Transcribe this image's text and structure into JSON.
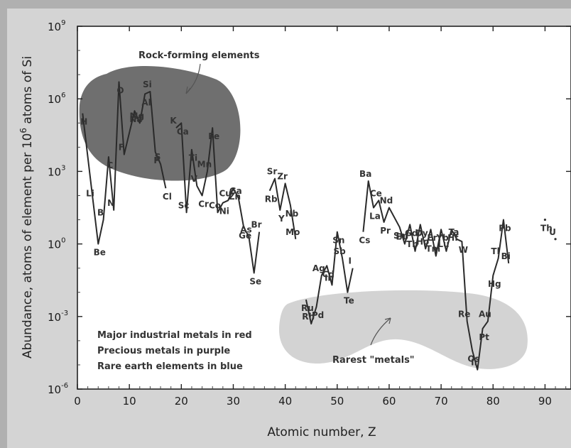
{
  "chart_data": {
    "type": "line",
    "xlabel": "Atomic number, Z",
    "ylabel": "Abundance, atoms of element per 10",
    "ylabel_sup": "6",
    "ylabel_tail": " atoms of Si",
    "xlim": [
      0,
      95
    ],
    "ylim_log10": [
      -6,
      9
    ],
    "x_ticks": [
      0,
      10,
      20,
      30,
      40,
      50,
      60,
      70,
      80,
      90
    ],
    "x_tick_labels": [
      "0",
      "10",
      "20",
      "30",
      "40",
      "50",
      "60",
      "70",
      "80",
      "90"
    ],
    "y_ticks_log10": [
      -6,
      -3,
      0,
      3,
      6,
      9
    ],
    "y_tick_base": "10",
    "y_tick_exps": [
      "-6",
      "-3",
      "0",
      "3",
      "6",
      "9"
    ],
    "series": [
      {
        "points": [
          [
            1,
            5.4
          ],
          [
            3,
            1.8
          ],
          [
            4,
            0.0
          ],
          [
            5,
            1.0
          ],
          [
            6,
            3.6
          ],
          [
            7,
            1.4
          ],
          [
            8,
            6.7
          ],
          [
            9,
            3.7
          ],
          [
            11,
            5.5
          ],
          [
            12,
            5.0
          ],
          [
            13,
            6.2
          ],
          [
            14,
            6.3
          ],
          [
            15,
            3.8
          ],
          [
            16,
            3.3
          ],
          [
            17,
            2.3
          ]
        ]
      },
      {
        "points": [
          [
            19,
            4.8
          ],
          [
            20,
            5.0
          ],
          [
            21,
            1.3
          ],
          [
            22,
            3.9
          ],
          [
            23,
            2.4
          ],
          [
            24,
            2.0
          ],
          [
            25,
            3.0
          ],
          [
            26,
            4.8
          ],
          [
            27,
            1.3
          ],
          [
            28,
            1.7
          ],
          [
            29,
            1.8
          ],
          [
            30,
            2.3
          ],
          [
            31,
            1.9
          ],
          [
            32,
            0.7
          ],
          [
            33,
            0.3
          ],
          [
            34,
            -1.2
          ],
          [
            35,
            0.5
          ]
        ]
      },
      {
        "points": [
          [
            37,
            2.2
          ],
          [
            38,
            2.7
          ],
          [
            39,
            1.4
          ],
          [
            40,
            2.5
          ],
          [
            41,
            1.6
          ],
          [
            42,
            0.2
          ]
        ]
      },
      {
        "points": [
          [
            44,
            -2.3
          ],
          [
            45,
            -3.3
          ],
          [
            46,
            -2.6
          ],
          [
            47,
            -1.3
          ],
          [
            48,
            -0.9
          ],
          [
            49,
            -1.7
          ],
          [
            50,
            0.5
          ],
          [
            51,
            -0.6
          ],
          [
            52,
            -2.0
          ],
          [
            53,
            -1.0
          ]
        ]
      },
      {
        "points": [
          [
            55,
            0.5
          ],
          [
            56,
            2.6
          ],
          [
            57,
            1.5
          ],
          [
            58,
            1.8
          ],
          [
            59,
            0.9
          ],
          [
            60,
            1.5
          ],
          [
            62,
            0.7
          ],
          [
            63,
            0.0
          ],
          [
            64,
            0.8
          ],
          [
            65,
            -0.3
          ],
          [
            66,
            0.8
          ],
          [
            67,
            -0.2
          ],
          [
            68,
            0.6
          ],
          [
            69,
            -0.5
          ],
          [
            70,
            0.6
          ],
          [
            71,
            -0.3
          ],
          [
            72,
            0.6
          ],
          [
            73,
            0.2
          ],
          [
            74,
            0.1
          ],
          [
            75,
            -3.2
          ],
          [
            76,
            -4.4
          ],
          [
            77,
            -5.2
          ],
          [
            78,
            -3.5
          ],
          [
            79,
            -3.2
          ],
          [
            80,
            -1.3
          ],
          [
            81,
            -0.6
          ],
          [
            82,
            1.0
          ],
          [
            83,
            -0.8
          ]
        ]
      },
      {
        "points": [
          [
            90,
            1.0
          ],
          [
            92,
            0.2
          ]
        ]
      }
    ],
    "element_labels": [
      {
        "z": 1,
        "v": 5.4,
        "text": "H",
        "c": "#777"
      },
      {
        "z": 3,
        "v": 1.8,
        "text": "Li",
        "c": "#333"
      },
      {
        "z": 4,
        "v": 0.0,
        "text": "Be",
        "c": "#333"
      },
      {
        "z": 5,
        "v": 1.0,
        "text": "B",
        "c": "#333"
      },
      {
        "z": 6,
        "v": 3.6,
        "text": "C",
        "c": "#777"
      },
      {
        "z": 7,
        "v": 1.4,
        "text": "N",
        "c": "#333"
      },
      {
        "z": 8,
        "v": 6.7,
        "text": "O",
        "c": "#777"
      },
      {
        "z": 9,
        "v": 3.7,
        "text": "F",
        "c": "#777"
      },
      {
        "z": 11,
        "v": 5.5,
        "text": "Na",
        "c": "#777"
      },
      {
        "z": 12,
        "v": 5.0,
        "text": "Mg",
        "c": "#777"
      },
      {
        "z": 13,
        "v": 6.2,
        "text": "Al",
        "c": "#777"
      },
      {
        "z": 14,
        "v": 6.3,
        "text": "Si",
        "c": "#777"
      },
      {
        "z": 15,
        "v": 3.8,
        "text": "P",
        "c": "#777"
      },
      {
        "z": 16,
        "v": 3.3,
        "text": "S",
        "c": "#777"
      },
      {
        "z": 17,
        "v": 2.3,
        "text": "Cl",
        "c": "#777"
      },
      {
        "z": 19,
        "v": 4.8,
        "text": "K",
        "c": "#333"
      },
      {
        "z": 20,
        "v": 5.0,
        "text": "Ca",
        "c": "#777"
      },
      {
        "z": 21,
        "v": 1.3,
        "text": "Sc",
        "c": "#333"
      },
      {
        "z": 22,
        "v": 3.9,
        "text": "Ti",
        "c": "#777"
      },
      {
        "z": 23,
        "v": 2.4,
        "text": "V",
        "c": "#333"
      },
      {
        "z": 24,
        "v": 2.0,
        "text": "Cr",
        "c": "#333"
      },
      {
        "z": 25,
        "v": 3.0,
        "text": "Mn",
        "c": "#777"
      },
      {
        "z": 26,
        "v": 4.8,
        "text": "Fe",
        "c": "#777"
      },
      {
        "z": 27,
        "v": 1.3,
        "text": "Co",
        "c": "#333"
      },
      {
        "z": 28,
        "v": 1.7,
        "text": "Ni",
        "c": "#333"
      },
      {
        "z": 29,
        "v": 1.8,
        "text": "Cu",
        "c": "#333"
      },
      {
        "z": 30,
        "v": 2.3,
        "text": "Zn",
        "c": "#333"
      },
      {
        "z": 31,
        "v": 1.9,
        "text": "Ga",
        "c": "#333"
      },
      {
        "z": 32,
        "v": 0.7,
        "text": "Ge",
        "c": "#333"
      },
      {
        "z": 33,
        "v": 0.3,
        "text": "As",
        "c": "#333"
      },
      {
        "z": 34,
        "v": -1.2,
        "text": "Se",
        "c": "#333"
      },
      {
        "z": 35,
        "v": 0.5,
        "text": "Br",
        "c": "#333"
      },
      {
        "z": 37,
        "v": 2.2,
        "text": "Rb",
        "c": "#333"
      },
      {
        "z": 38,
        "v": 2.7,
        "text": "Sr",
        "c": "#333"
      },
      {
        "z": 39,
        "v": 1.4,
        "text": "Y",
        "c": "#333"
      },
      {
        "z": 40,
        "v": 2.5,
        "text": "Zr",
        "c": "#333"
      },
      {
        "z": 41,
        "v": 1.6,
        "text": "Nb",
        "c": "#333"
      },
      {
        "z": 42,
        "v": 0.2,
        "text": "Mo",
        "c": "#777"
      },
      {
        "z": 44,
        "v": -2.3,
        "text": "Ru",
        "c": "#333"
      },
      {
        "z": 45,
        "v": -3.3,
        "text": "Rh",
        "c": "#333"
      },
      {
        "z": 46,
        "v": -2.6,
        "text": "Pd",
        "c": "#333"
      },
      {
        "z": 47,
        "v": -1.3,
        "text": "Ag",
        "c": "#333"
      },
      {
        "z": 48,
        "v": -0.9,
        "text": "Cd",
        "c": "#333"
      },
      {
        "z": 49,
        "v": -1.7,
        "text": "In",
        "c": "#333"
      },
      {
        "z": 50,
        "v": 0.5,
        "text": "Sn",
        "c": "#777"
      },
      {
        "z": 51,
        "v": -0.6,
        "text": "Sb",
        "c": "#333"
      },
      {
        "z": 52,
        "v": -2.0,
        "text": "Te",
        "c": "#333"
      },
      {
        "z": 53,
        "v": -1.0,
        "text": "I",
        "c": "#333"
      },
      {
        "z": 55,
        "v": 0.5,
        "text": "Cs",
        "c": "#333"
      },
      {
        "z": 56,
        "v": 2.6,
        "text": "Ba",
        "c": "#333"
      },
      {
        "z": 57,
        "v": 1.5,
        "text": "La",
        "c": "#777"
      },
      {
        "z": 58,
        "v": 1.8,
        "text": "Ce",
        "c": "#333"
      },
      {
        "z": 59,
        "v": 0.9,
        "text": "Pr",
        "c": "#333"
      },
      {
        "z": 60,
        "v": 1.5,
        "text": "Nd",
        "c": "#333"
      },
      {
        "z": 62,
        "v": 0.7,
        "text": "Sm",
        "c": "#333"
      },
      {
        "z": 63,
        "v": 0.0,
        "text": "Eu",
        "c": "#333"
      },
      {
        "z": 64,
        "v": 0.8,
        "text": "Gd",
        "c": "#333"
      },
      {
        "z": 65,
        "v": -0.3,
        "text": "Tb",
        "c": "#777"
      },
      {
        "z": 66,
        "v": 0.8,
        "text": "Dy",
        "c": "#777"
      },
      {
        "z": 67,
        "v": -0.2,
        "text": "Ho",
        "c": "#777"
      },
      {
        "z": 68,
        "v": 0.6,
        "text": "Er",
        "c": "#333"
      },
      {
        "z": 69,
        "v": -0.5,
        "text": "Tm",
        "c": "#333"
      },
      {
        "z": 70,
        "v": 0.6,
        "text": "Yb",
        "c": "#333"
      },
      {
        "z": 71,
        "v": -0.3,
        "text": "Lu",
        "c": "#333"
      },
      {
        "z": 72,
        "v": 0.6,
        "text": "Hf",
        "c": "#333"
      },
      {
        "z": 73,
        "v": 0.2,
        "text": "Ta",
        "c": "#333"
      },
      {
        "z": 74,
        "v": 0.1,
        "text": "W",
        "c": "#777"
      },
      {
        "z": 75,
        "v": -3.2,
        "text": "Re",
        "c": "#333"
      },
      {
        "z": 76,
        "v": -4.4,
        "text": "Os",
        "c": "#777"
      },
      {
        "z": 77,
        "v": -5.2,
        "text": "Ir",
        "c": "#333"
      },
      {
        "z": 78,
        "v": -3.5,
        "text": "Pt",
        "c": "#333"
      },
      {
        "z": 79,
        "v": -3.2,
        "text": "Au",
        "c": "#333"
      },
      {
        "z": 80,
        "v": -1.3,
        "text": "Hg",
        "c": "#333"
      },
      {
        "z": 81,
        "v": -0.6,
        "text": "Tl",
        "c": "#333"
      },
      {
        "z": 82,
        "v": 1.0,
        "text": "Pb",
        "c": "#333"
      },
      {
        "z": 83,
        "v": -0.8,
        "text": "Bi",
        "c": "#333"
      },
      {
        "z": 90,
        "v": 1.0,
        "text": "Th",
        "c": "#333"
      },
      {
        "z": 92,
        "v": 0.2,
        "text": "U",
        "c": "#777"
      }
    ],
    "annotations": {
      "rock_forming": "Rock-forming elements",
      "rarest_metals": "Rarest \"metals\""
    },
    "legend_lines": [
      "Major industrial metals in red",
      "Precious metals in purple",
      "Rare earth elements in blue"
    ],
    "colors": {
      "plot_bg": "#ffffff",
      "outer_bg": "#d4d4d4",
      "rock_region": "#6f6f6f",
      "rare_region": "#d3d3d3",
      "line": "#2a2a2a"
    }
  }
}
